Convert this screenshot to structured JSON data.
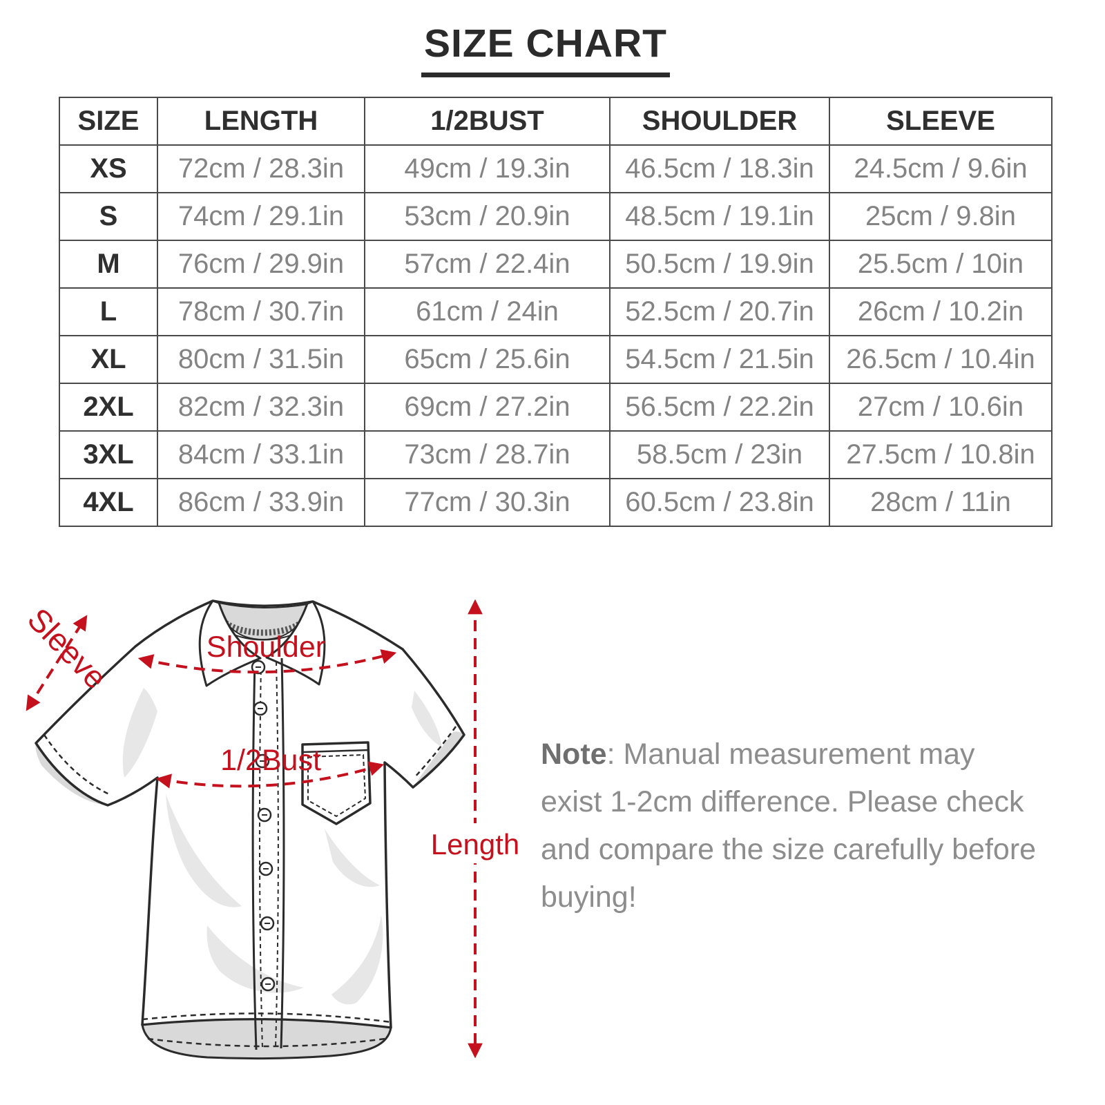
{
  "title": "SIZE CHART",
  "chart_data": {
    "type": "table",
    "title": "SIZE CHART",
    "columns": [
      "SIZE",
      "LENGTH",
      "1/2BUST",
      "SHOULDER",
      "SLEEVE"
    ],
    "rows": [
      [
        "XS",
        "72cm / 28.3in",
        "49cm / 19.3in",
        "46.5cm / 18.3in",
        "24.5cm / 9.6in"
      ],
      [
        "S",
        "74cm / 29.1in",
        "53cm / 20.9in",
        "48.5cm / 19.1in",
        "25cm / 9.8in"
      ],
      [
        "M",
        "76cm / 29.9in",
        "57cm / 22.4in",
        "50.5cm / 19.9in",
        "25.5cm / 10in"
      ],
      [
        "L",
        "78cm / 30.7in",
        "61cm / 24in",
        "52.5cm / 20.7in",
        "26cm / 10.2in"
      ],
      [
        "XL",
        "80cm / 31.5in",
        "65cm / 25.6in",
        "54.5cm / 21.5in",
        "26.5cm / 10.4in"
      ],
      [
        "2XL",
        "82cm / 32.3in",
        "69cm / 27.2in",
        "56.5cm / 22.2in",
        "27cm / 10.6in"
      ],
      [
        "3XL",
        "84cm / 33.1in",
        "73cm / 28.7in",
        "58.5cm / 23in",
        "27.5cm / 10.8in"
      ],
      [
        "4XL",
        "86cm / 33.9in",
        "77cm / 30.3in",
        "60.5cm / 23.8in",
        "28cm / 11in"
      ]
    ]
  },
  "diagram": {
    "labels": {
      "sleeve": "Sleeve",
      "shoulder": "Shoulder",
      "bust": "1/2Bust",
      "length": "Length"
    },
    "accent_color": "#c4111d"
  },
  "note": {
    "label": "Note",
    "text": ": Manual measurement may exist 1-2cm difference. Please check and compare the size carefully before buying!"
  }
}
